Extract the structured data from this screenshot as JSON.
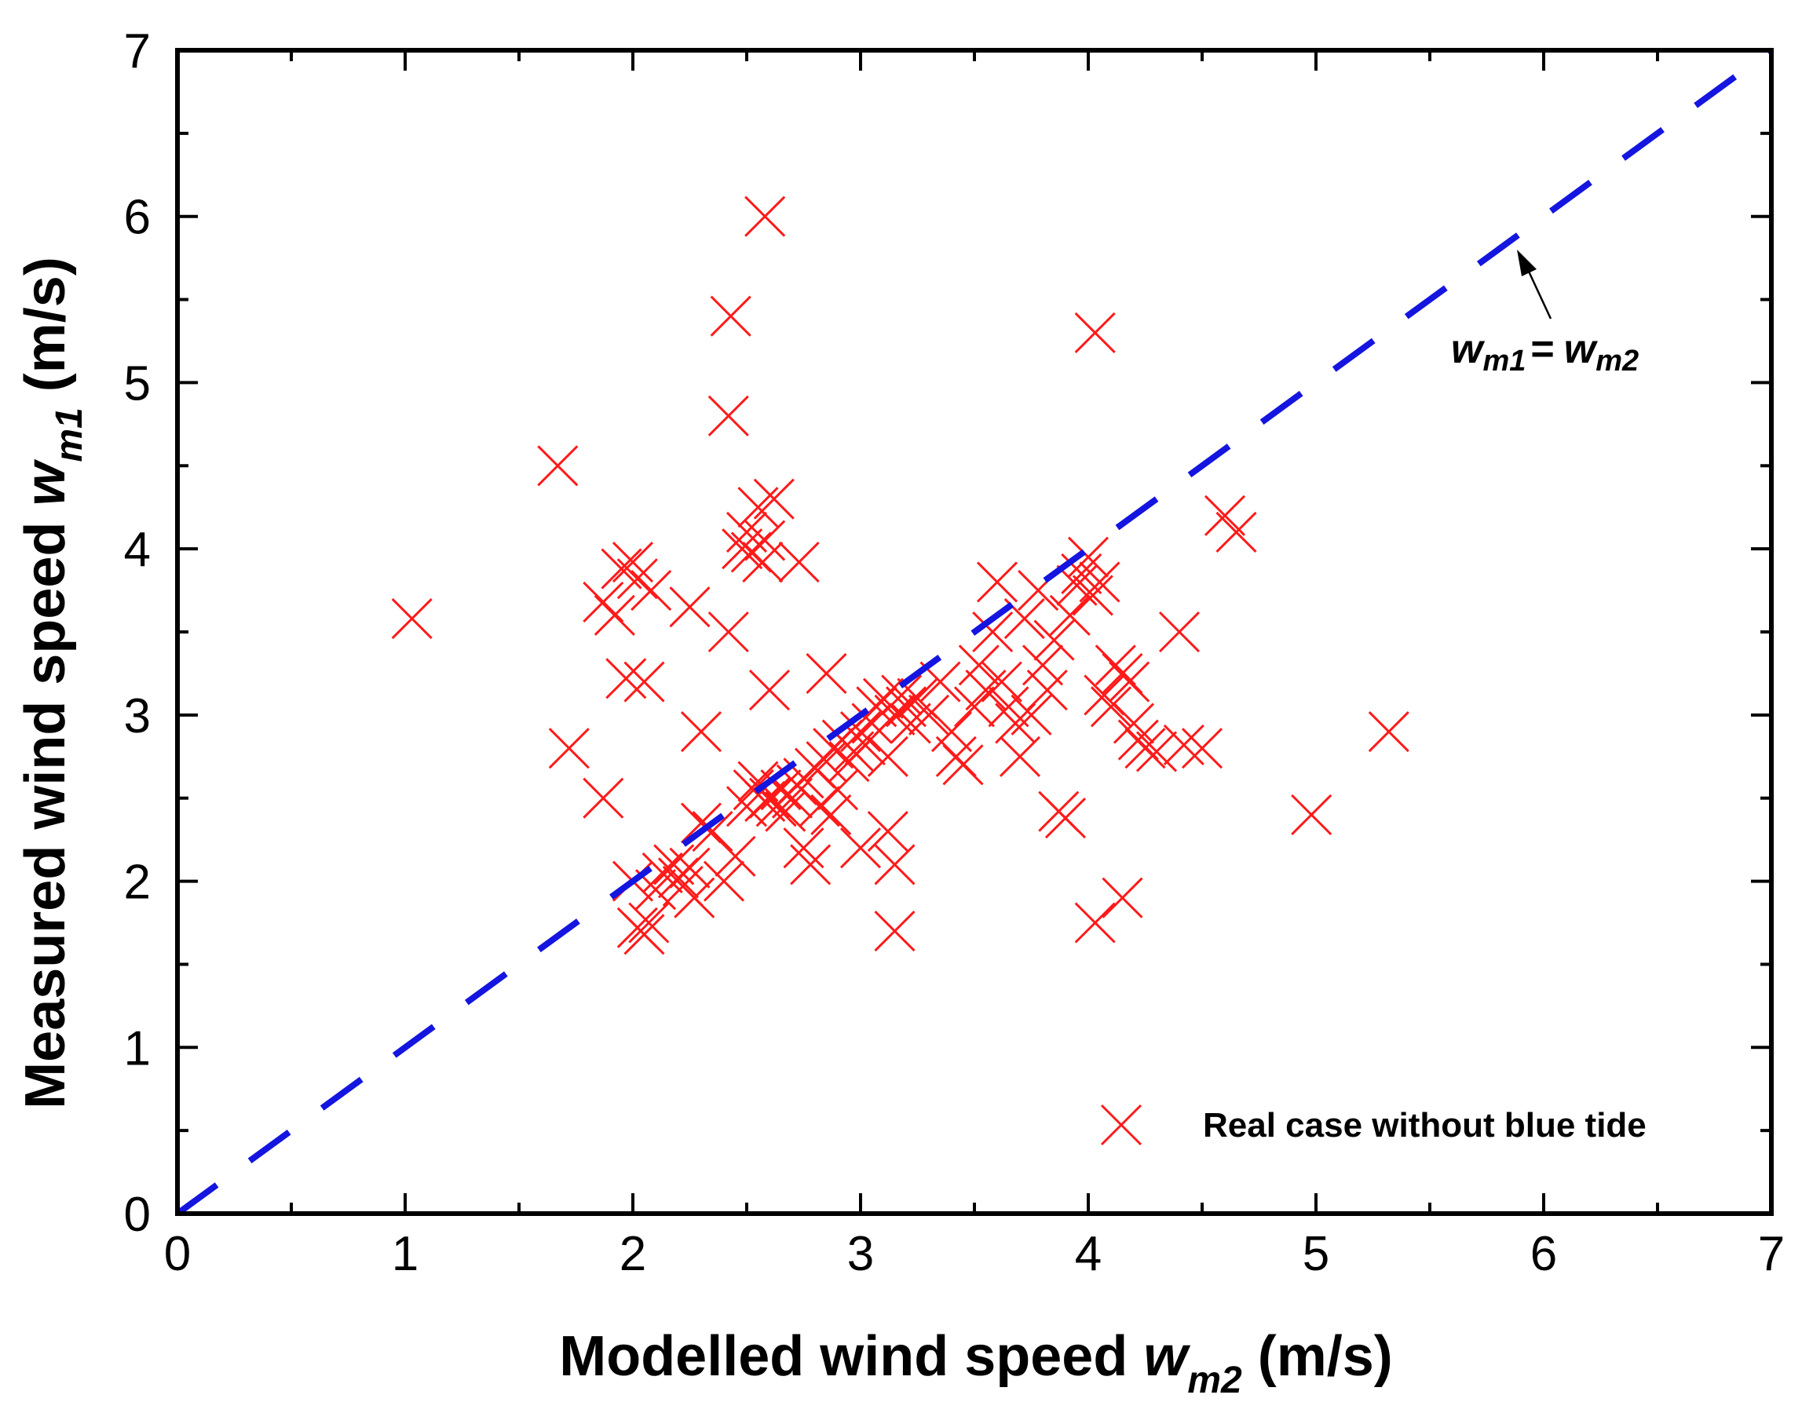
{
  "chart_data": {
    "type": "scatter",
    "title": "",
    "xlabel": {
      "prefix": "Modelled wind speed ",
      "var": "w",
      "sub": "m2",
      "suffix": " (m/s)"
    },
    "ylabel": {
      "prefix": "Measured wind speed ",
      "var": "w",
      "sub": "m1",
      "suffix": " (m/s)"
    },
    "xlim": [
      0,
      7
    ],
    "ylim": [
      0,
      7
    ],
    "xticks": [
      "0",
      "1",
      "2",
      "3",
      "4",
      "5",
      "6",
      "7"
    ],
    "yticks": [
      "0",
      "1",
      "2",
      "3",
      "4",
      "5",
      "6",
      "7"
    ],
    "grid": false,
    "legend": {
      "label": "Real case without blue tide",
      "position": "bottom-right"
    },
    "reference_line": {
      "type": "dashed",
      "color": "#1515e0",
      "points": [
        [
          0,
          0
        ],
        [
          7,
          7
        ]
      ],
      "annotation": {
        "var1": "w",
        "sub1": "m1",
        "eq": "=",
        "var2": "w",
        "sub2": "m2"
      }
    },
    "series": [
      {
        "name": "Real case without blue tide",
        "marker": "x",
        "color": "#ff1a1a",
        "points": [
          [
            1.03,
            3.58
          ],
          [
            1.67,
            4.5
          ],
          [
            1.72,
            2.8
          ],
          [
            1.87,
            2.5
          ],
          [
            1.87,
            3.68
          ],
          [
            1.92,
            3.6
          ],
          [
            1.95,
            3.88
          ],
          [
            1.97,
            3.22
          ],
          [
            2.0,
            3.92
          ],
          [
            2.02,
            3.82
          ],
          [
            2.05,
            3.2
          ],
          [
            2.08,
            3.75
          ],
          [
            2.0,
            2.0
          ],
          [
            2.02,
            1.72
          ],
          [
            2.05,
            1.68
          ],
          [
            2.07,
            1.75
          ],
          [
            2.1,
            1.95
          ],
          [
            2.13,
            2.05
          ],
          [
            2.18,
            2.1
          ],
          [
            2.2,
            2.02
          ],
          [
            2.22,
            1.97
          ],
          [
            2.25,
            2.08
          ],
          [
            2.27,
            1.9
          ],
          [
            2.3,
            2.35
          ],
          [
            2.25,
            3.65
          ],
          [
            2.3,
            2.9
          ],
          [
            2.35,
            2.3
          ],
          [
            2.4,
            2.0
          ],
          [
            2.42,
            3.5
          ],
          [
            2.42,
            4.8
          ],
          [
            2.43,
            5.4
          ],
          [
            2.45,
            2.15
          ],
          [
            2.48,
            4.0
          ],
          [
            2.5,
            4.1
          ],
          [
            2.52,
            3.98
          ],
          [
            2.55,
            4.25
          ],
          [
            2.57,
            3.92
          ],
          [
            2.58,
            4.05
          ],
          [
            2.62,
            4.3
          ],
          [
            2.6,
            3.15
          ],
          [
            2.58,
            6.0
          ],
          [
            2.73,
            3.92
          ],
          [
            2.5,
            2.45
          ],
          [
            2.53,
            2.55
          ],
          [
            2.55,
            2.6
          ],
          [
            2.58,
            2.48
          ],
          [
            2.6,
            2.5
          ],
          [
            2.63,
            2.45
          ],
          [
            2.65,
            2.55
          ],
          [
            2.67,
            2.42
          ],
          [
            2.7,
            2.5
          ],
          [
            2.72,
            2.58
          ],
          [
            2.75,
            2.62
          ],
          [
            2.75,
            2.2
          ],
          [
            2.78,
            2.1
          ],
          [
            2.8,
            2.68
          ],
          [
            2.82,
            2.45
          ],
          [
            2.85,
            2.72
          ],
          [
            2.87,
            2.4
          ],
          [
            2.88,
            2.8
          ],
          [
            2.9,
            2.55
          ],
          [
            2.92,
            2.85
          ],
          [
            2.95,
            2.72
          ],
          [
            2.97,
            2.78
          ],
          [
            3.0,
            2.2
          ],
          [
            3.0,
            2.9
          ],
          [
            3.02,
            2.82
          ],
          [
            3.05,
            2.95
          ],
          [
            3.07,
            3.05
          ],
          [
            3.1,
            3.1
          ],
          [
            3.12,
            2.75
          ],
          [
            3.12,
            2.3
          ],
          [
            3.15,
            2.1
          ],
          [
            3.15,
            1.7
          ],
          [
            3.15,
            3.0
          ],
          [
            3.18,
            3.12
          ],
          [
            3.2,
            3.05
          ],
          [
            3.22,
            2.95
          ],
          [
            2.85,
            3.25
          ],
          [
            3.25,
            3.1
          ],
          [
            3.3,
            3.0
          ],
          [
            3.35,
            3.2
          ],
          [
            3.4,
            2.9
          ],
          [
            3.42,
            2.75
          ],
          [
            3.45,
            2.7
          ],
          [
            3.5,
            3.05
          ],
          [
            3.52,
            3.3
          ],
          [
            3.55,
            3.15
          ],
          [
            3.58,
            3.5
          ],
          [
            3.6,
            3.8
          ],
          [
            3.62,
            3.2
          ],
          [
            3.65,
            3.05
          ],
          [
            3.68,
            2.95
          ],
          [
            3.7,
            2.75
          ],
          [
            3.72,
            3.58
          ],
          [
            3.75,
            3.0
          ],
          [
            3.78,
            3.75
          ],
          [
            3.8,
            3.3
          ],
          [
            3.82,
            3.15
          ],
          [
            3.85,
            3.45
          ],
          [
            3.87,
            2.42
          ],
          [
            3.9,
            2.38
          ],
          [
            3.92,
            3.6
          ],
          [
            3.95,
            3.78
          ],
          [
            3.97,
            3.85
          ],
          [
            4.0,
            3.95
          ],
          [
            4.02,
            3.72
          ],
          [
            4.05,
            3.8
          ],
          [
            4.07,
            3.12
          ],
          [
            4.1,
            3.05
          ],
          [
            4.12,
            3.3
          ],
          [
            4.15,
            3.25
          ],
          [
            4.18,
            3.2
          ],
          [
            4.2,
            2.95
          ],
          [
            4.22,
            2.85
          ],
          [
            4.25,
            2.8
          ],
          [
            4.3,
            2.78
          ],
          [
            4.4,
            3.5
          ],
          [
            4.42,
            2.82
          ],
          [
            4.5,
            2.8
          ],
          [
            4.03,
            5.3
          ],
          [
            4.03,
            1.75
          ],
          [
            4.15,
            1.9
          ],
          [
            4.6,
            4.2
          ],
          [
            4.65,
            4.1
          ],
          [
            4.98,
            2.4
          ],
          [
            5.32,
            2.9
          ]
        ]
      }
    ]
  }
}
